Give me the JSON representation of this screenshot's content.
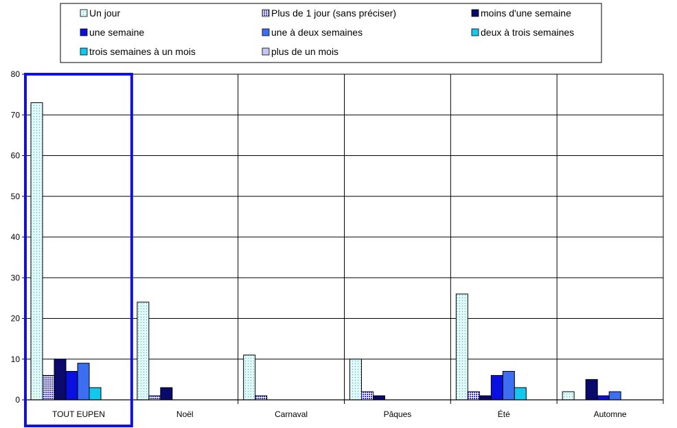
{
  "chart_data": {
    "type": "bar",
    "categories": [
      "TOUT EUPEN",
      "Noël",
      "Carnaval",
      "Pâques",
      "Été",
      "Automne"
    ],
    "highlighted_category": "TOUT EUPEN",
    "highlight_color": "#1010e0",
    "ylim": [
      0,
      80
    ],
    "yticks": [
      0,
      10,
      20,
      30,
      40,
      50,
      60,
      70,
      80
    ],
    "grid": true,
    "legend_position": "top",
    "series": [
      {
        "name": "Un jour",
        "color": "#ddfafa",
        "pattern": "dots",
        "values": [
          73,
          24,
          11,
          10,
          26,
          2
        ]
      },
      {
        "name": "Plus de 1 jour (sans préciser)",
        "color": "#3f3fe6",
        "pattern": "checks",
        "values": [
          6,
          1,
          1,
          2,
          2,
          0
        ]
      },
      {
        "name": "moins d'une semaine",
        "color": "#0a0a6e",
        "pattern": "solid",
        "values": [
          10,
          3,
          0,
          1,
          1,
          5
        ]
      },
      {
        "name": "une semaine",
        "color": "#0a10e0",
        "pattern": "solid",
        "values": [
          7,
          0,
          0,
          0,
          6,
          1
        ]
      },
      {
        "name": "une à deux semaines",
        "color": "#3b6ef0",
        "pattern": "solid",
        "values": [
          9,
          0,
          0,
          0,
          7,
          2
        ]
      },
      {
        "name": "deux à trois semaines",
        "color": "#12c8ec",
        "pattern": "solid",
        "values": [
          3,
          0,
          0,
          0,
          3,
          0
        ]
      },
      {
        "name": "trois semaines à un mois",
        "color": "#12c8ec",
        "pattern": "solid",
        "values": [
          0,
          0,
          0,
          0,
          0,
          0
        ]
      },
      {
        "name": "plus de un mois",
        "color": "#c6c6f5",
        "pattern": "solid",
        "values": [
          0,
          0,
          0,
          0,
          0,
          0
        ]
      }
    ]
  }
}
